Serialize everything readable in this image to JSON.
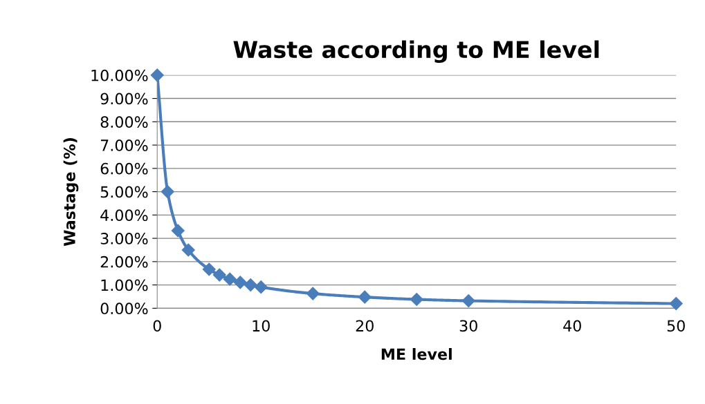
{
  "chart_data": {
    "type": "line",
    "title": "Waste according to ME level",
    "xlabel": "ME level",
    "ylabel": "Wastage (%)",
    "x": [
      0,
      1,
      2,
      3,
      5,
      6,
      7,
      8,
      9,
      10,
      15,
      20,
      25,
      30,
      50
    ],
    "series": [
      {
        "color": "#4a7ebb",
        "values": [
          10.0,
          5.0,
          3.33,
          2.5,
          1.67,
          1.43,
          1.25,
          1.11,
          1.0,
          0.91,
          0.63,
          0.48,
          0.38,
          0.32,
          0.2
        ]
      }
    ],
    "xlim": [
      0,
      50
    ],
    "xticks": [
      0,
      10,
      20,
      30,
      40,
      50
    ],
    "ylim": [
      0,
      10
    ],
    "yticks": [
      {
        "value": 0,
        "label": "0.00%"
      },
      {
        "value": 1,
        "label": "1.00%"
      },
      {
        "value": 2,
        "label": "2.00%"
      },
      {
        "value": 3,
        "label": "3.00%"
      },
      {
        "value": 4,
        "label": "4.00%"
      },
      {
        "value": 5,
        "label": "5.00%"
      },
      {
        "value": 6,
        "label": "6.00%"
      },
      {
        "value": 7,
        "label": "7.00%"
      },
      {
        "value": 8,
        "label": "8.00%"
      },
      {
        "value": 9,
        "label": "9.00%"
      },
      {
        "value": 10,
        "label": "10.00%"
      }
    ],
    "grid": "y",
    "marker": "diamond",
    "line_style": "solid",
    "legend": false
  }
}
